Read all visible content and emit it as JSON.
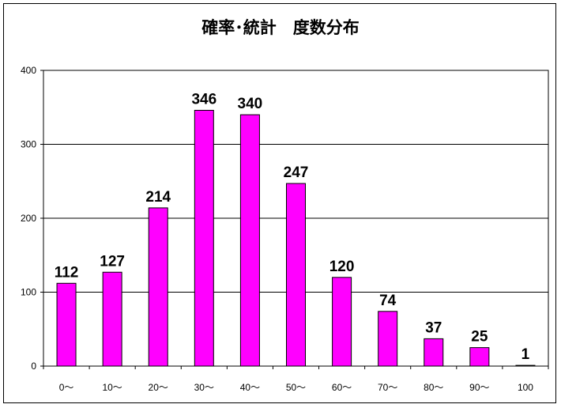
{
  "chart_data": {
    "type": "bar",
    "title": "確率･統計　度数分布",
    "categories": [
      "0～",
      "10～",
      "20～",
      "30～",
      "40～",
      "50～",
      "60～",
      "70～",
      "80～",
      "90～",
      "100"
    ],
    "values": [
      112,
      127,
      214,
      346,
      340,
      247,
      120,
      74,
      37,
      25,
      1
    ],
    "data_labels": [
      "112",
      "127",
      "214",
      "346",
      "340",
      "247",
      "120",
      "74",
      "37",
      "25",
      "1"
    ],
    "ylim": [
      0,
      400
    ],
    "yticks": [
      0,
      100,
      200,
      300,
      400
    ],
    "ytick_labels": [
      "0",
      "100",
      "200",
      "300",
      "400"
    ],
    "xlabel": "",
    "ylabel": "",
    "grid": true,
    "legend": "none",
    "colors": {
      "bar": "#ff00ff",
      "bar_edge": "#000000",
      "grid": "#000000"
    }
  }
}
